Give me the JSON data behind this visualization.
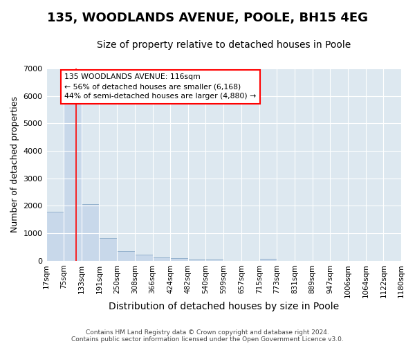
{
  "title": "135, WOODLANDS AVENUE, POOLE, BH15 4EG",
  "subtitle": "Size of property relative to detached houses in Poole",
  "xlabel": "Distribution of detached houses by size in Poole",
  "ylabel": "Number of detached properties",
  "bin_edges": [
    17,
    75,
    133,
    191,
    250,
    308,
    366,
    424,
    482,
    540,
    599,
    657,
    715,
    773,
    831,
    889,
    947,
    1006,
    1064,
    1122,
    1180
  ],
  "bar_heights": [
    1780,
    5750,
    2050,
    830,
    360,
    230,
    110,
    90,
    50,
    50,
    0,
    0,
    60,
    0,
    0,
    0,
    0,
    0,
    0,
    0
  ],
  "bar_color": "#c8d8ea",
  "bar_edge_color": "#8aaac8",
  "red_line_x": 116,
  "annotation_text": "135 WOODLANDS AVENUE: 116sqm\n← 56% of detached houses are smaller (6,168)\n44% of semi-detached houses are larger (4,880) →",
  "annotation_box_color": "white",
  "annotation_box_edge_color": "red",
  "ylim": [
    0,
    7000
  ],
  "yticks": [
    0,
    1000,
    2000,
    3000,
    4000,
    5000,
    6000,
    7000
  ],
  "footer_line1": "Contains HM Land Registry data © Crown copyright and database right 2024.",
  "footer_line2": "Contains public sector information licensed under the Open Government Licence v3.0.",
  "fig_background_color": "#ffffff",
  "plot_bg_color": "#dde8f0",
  "grid_color": "white",
  "title_fontsize": 13,
  "subtitle_fontsize": 10,
  "tick_label_fontsize": 7.5,
  "ylabel_fontsize": 9,
  "xlabel_fontsize": 10,
  "footer_fontsize": 6.5
}
